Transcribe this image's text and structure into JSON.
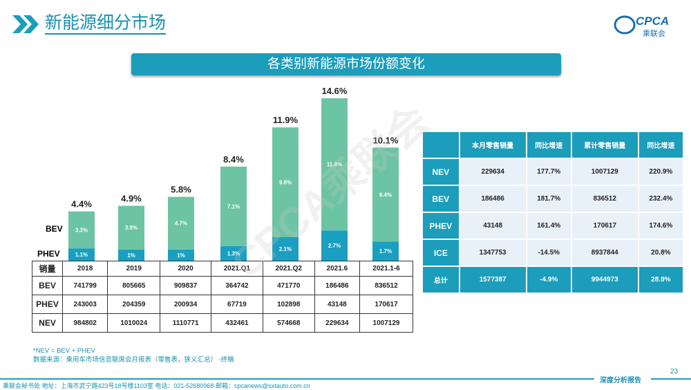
{
  "header": {
    "title": "新能源细分市场",
    "logo_text": "CPCA",
    "logo_sub": "乘联会",
    "icon": "double-chevron-icon"
  },
  "banner": "各类别新能源市场份额变化",
  "watermark": "CPCA乘联会",
  "chart_data": {
    "type": "bar",
    "stacked": true,
    "categories": [
      "2018",
      "2019",
      "2020",
      "2021.Q1",
      "2021.Q2",
      "2021.6",
      "2021.1-6"
    ],
    "series": [
      {
        "name": "PHEV",
        "values": [
          1.1,
          1.0,
          1.0,
          1.3,
          2.1,
          2.7,
          1.7
        ],
        "color": "#1a9fc0"
      },
      {
        "name": "BEV",
        "values": [
          3.3,
          3.9,
          4.7,
          7.1,
          9.8,
          11.8,
          8.4
        ],
        "color": "#6cc4a4"
      }
    ],
    "totals": [
      4.4,
      4.9,
      5.8,
      8.4,
      11.9,
      14.6,
      10.1
    ],
    "unit": "%"
  },
  "left_table": {
    "header": [
      "销量",
      "2018",
      "2019",
      "2020",
      "2021.Q1",
      "2021.Q2",
      "2021.6",
      "2021.1-6"
    ],
    "rows": [
      [
        "BEV",
        "741799",
        "805665",
        "909837",
        "364742",
        "471770",
        "186486",
        "836512"
      ],
      [
        "PHEV",
        "243003",
        "204359",
        "200934",
        "67719",
        "102898",
        "43148",
        "170617"
      ],
      [
        "NEV",
        "984802",
        "1010024",
        "1110771",
        "432461",
        "574668",
        "229634",
        "1007129"
      ]
    ]
  },
  "right_table": {
    "header": [
      "",
      "本月零售销量",
      "同比增速",
      "累计零售销量",
      "同比增速"
    ],
    "rows": [
      [
        "NEV",
        "229634",
        "177.7%",
        "1007129",
        "220.9%"
      ],
      [
        "BEV",
        "186486",
        "181.7%",
        "836512",
        "232.4%"
      ],
      [
        "PHEV",
        "43148",
        "161.4%",
        "170617",
        "174.6%"
      ],
      [
        "ICE",
        "1347753",
        "-14.5%",
        "8937844",
        "20.8%"
      ]
    ],
    "total": [
      "总计",
      "1577387",
      "-4.9%",
      "9944973",
      "28.9%"
    ]
  },
  "notes": [
    "*NEV = BEV + PHEV",
    "数据来源：乘用车市场信息联席会月报表（零售表，狭义汇总）  -终稿"
  ],
  "footer": "乘联会秘书处   地址：上海市武宁路423号18号楼1103室   电话：021-52680968   邮箱：cpcanews@sxtauto.com.cn",
  "report_label": "深度分析报告",
  "page_number": "23"
}
